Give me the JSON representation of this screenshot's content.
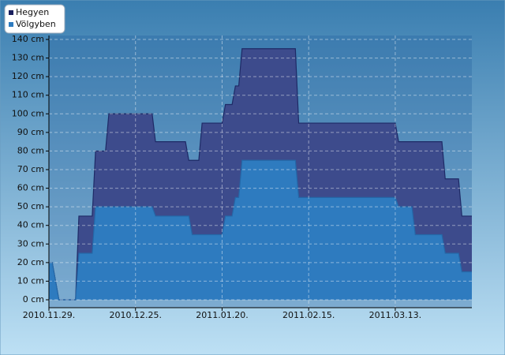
{
  "chart_data": {
    "type": "area",
    "x": [
      "2010.11.29.",
      "2010.11.30.",
      "2010.12.02.",
      "2010.12.07.",
      "2010.12.08.",
      "2010.12.12.",
      "2010.12.13.",
      "2010.12.16.",
      "2010.12.17.",
      "2010.12.30.",
      "2010.12.31.",
      "2011.01.09.",
      "2011.01.10.",
      "2011.01.11.",
      "2011.01.13.",
      "2011.01.14.",
      "2011.01.20.",
      "2011.01.21.",
      "2011.01.23.",
      "2011.01.24.",
      "2011.01.25.",
      "2011.01.26.",
      "2011.02.11.",
      "2011.02.12.",
      "2011.03.13.",
      "2011.03.14.",
      "2011.03.18.",
      "2011.03.19.",
      "2011.03.27.",
      "2011.03.28.",
      "2011.04.01.",
      "2011.04.02.",
      "2011.04.05."
    ],
    "series": [
      {
        "name": "Hegyen",
        "color": "#3d4b8c",
        "values": [
          20,
          20,
          0,
          0,
          45,
          45,
          80,
          80,
          100,
          100,
          85,
          85,
          75,
          75,
          75,
          95,
          95,
          105,
          105,
          115,
          115,
          135,
          135,
          95,
          95,
          85,
          85,
          85,
          85,
          65,
          65,
          45,
          45
        ]
      },
      {
        "name": "Völgyben",
        "color": "#2e7bbf",
        "values": [
          20,
          20,
          0,
          0,
          25,
          25,
          50,
          50,
          50,
          50,
          45,
          45,
          45,
          35,
          35,
          35,
          35,
          45,
          45,
          55,
          55,
          75,
          75,
          55,
          55,
          50,
          50,
          35,
          35,
          25,
          25,
          15,
          15
        ]
      }
    ],
    "xlim": [
      "2010.11.29.",
      "2011.04.05."
    ],
    "xticks": [
      "2010.11.29.",
      "2010.12.25.",
      "2011.01.20.",
      "2011.02.15.",
      "2011.03.13."
    ],
    "ylim": [
      0,
      140
    ],
    "yticks": [
      {
        "value": 0,
        "label": "0 cm"
      },
      {
        "value": 10,
        "label": "10 cm"
      },
      {
        "value": 20,
        "label": "20 cm"
      },
      {
        "value": 30,
        "label": "30 cm"
      },
      {
        "value": 40,
        "label": "40 cm"
      },
      {
        "value": 50,
        "label": "50 cm"
      },
      {
        "value": 60,
        "label": "60 cm"
      },
      {
        "value": 70,
        "label": "70 cm"
      },
      {
        "value": 80,
        "label": "80 cm"
      },
      {
        "value": 90,
        "label": "90 cm"
      },
      {
        "value": 100,
        "label": "100 cm"
      },
      {
        "value": 110,
        "label": "110 cm"
      },
      {
        "value": 120,
        "label": "120 cm"
      },
      {
        "value": 130,
        "label": "130 cm"
      },
      {
        "value": 140,
        "label": "140 cm"
      }
    ],
    "grid": true,
    "legend": "upper left"
  }
}
